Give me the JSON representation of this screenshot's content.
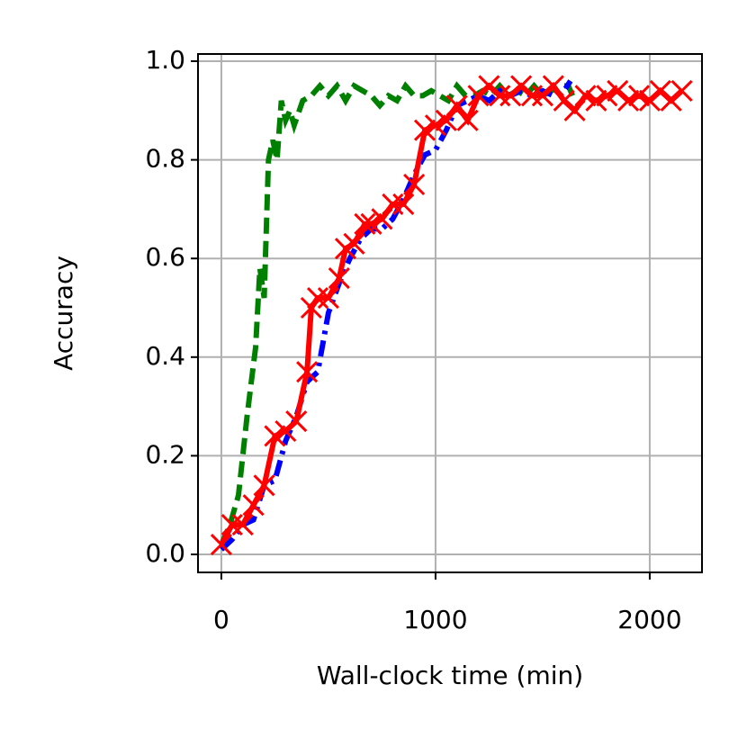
{
  "chart_data": {
    "type": "line",
    "xlabel": "Wall-clock time (min)",
    "ylabel": "Accuracy",
    "xlim": [
      -109,
      2244
    ],
    "ylim": [
      -0.0365,
      1.0146
    ],
    "xticks": [
      0,
      1000,
      2000
    ],
    "yticks": [
      {
        "value": 0,
        "label": "0.0"
      },
      0.2,
      0.4,
      0.6,
      0.8,
      {
        "value": 1,
        "label": "1.0"
      }
    ],
    "grid": true,
    "series": [
      {
        "color": "#008000",
        "linestyle": "dashed",
        "x": [
          0,
          40,
          80,
          120,
          160,
          180,
          200,
          220,
          240,
          260,
          280,
          300,
          320,
          340,
          380,
          420,
          460,
          500,
          540,
          580,
          620,
          660,
          700,
          740,
          780,
          820,
          860,
          900,
          940,
          980,
          1020,
          1060,
          1100,
          1140,
          1180,
          1220,
          1260,
          1300,
          1340,
          1380,
          1420,
          1460,
          1500,
          1540,
          1580,
          1620,
          1640
        ],
        "values": [
          0.02,
          0.06,
          0.12,
          0.28,
          0.42,
          0.58,
          0.52,
          0.8,
          0.84,
          0.8,
          0.92,
          0.88,
          0.9,
          0.87,
          0.92,
          0.93,
          0.95,
          0.93,
          0.95,
          0.92,
          0.95,
          0.94,
          0.93,
          0.91,
          0.93,
          0.92,
          0.95,
          0.93,
          0.93,
          0.94,
          0.93,
          0.92,
          0.95,
          0.93,
          0.93,
          0.94,
          0.93,
          0.95,
          0.93,
          0.94,
          0.93,
          0.95,
          0.93,
          0.94,
          0.95,
          0.95,
          0.93
        ]
      },
      {
        "color": "#0000ff",
        "linestyle": "dashdot",
        "x": [
          0,
          50,
          100,
          150,
          200,
          250,
          300,
          350,
          400,
          450,
          500,
          550,
          600,
          650,
          700,
          750,
          800,
          850,
          900,
          950,
          1000,
          1050,
          1100,
          1150,
          1200,
          1250,
          1300,
          1350,
          1400,
          1450,
          1500,
          1550,
          1600,
          1630
        ],
        "values": [
          0.01,
          0.03,
          0.06,
          0.07,
          0.14,
          0.15,
          0.23,
          0.28,
          0.35,
          0.37,
          0.49,
          0.55,
          0.6,
          0.64,
          0.66,
          0.66,
          0.68,
          0.72,
          0.77,
          0.81,
          0.82,
          0.86,
          0.91,
          0.92,
          0.93,
          0.92,
          0.94,
          0.93,
          0.94,
          0.93,
          0.94,
          0.93,
          0.94,
          0.96
        ]
      },
      {
        "color": "#ff0000",
        "linestyle": "solid",
        "marker": "x",
        "x": [
          0,
          50,
          100,
          150,
          200,
          250,
          300,
          350,
          400,
          420,
          450,
          500,
          550,
          580,
          620,
          670,
          700,
          750,
          800,
          850,
          900,
          950,
          1000,
          1050,
          1100,
          1150,
          1200,
          1250,
          1300,
          1350,
          1400,
          1450,
          1500,
          1550,
          1600,
          1650,
          1700,
          1750,
          1800,
          1850,
          1900,
          1950,
          2000,
          2050,
          2100,
          2150
        ],
        "values": [
          0.02,
          0.06,
          0.06,
          0.1,
          0.14,
          0.24,
          0.25,
          0.27,
          0.37,
          0.5,
          0.52,
          0.52,
          0.56,
          0.62,
          0.63,
          0.67,
          0.67,
          0.68,
          0.71,
          0.71,
          0.75,
          0.86,
          0.87,
          0.88,
          0.91,
          0.88,
          0.93,
          0.95,
          0.93,
          0.93,
          0.95,
          0.93,
          0.93,
          0.95,
          0.92,
          0.9,
          0.93,
          0.92,
          0.93,
          0.94,
          0.92,
          0.93,
          0.92,
          0.94,
          0.92,
          0.94
        ]
      }
    ]
  }
}
